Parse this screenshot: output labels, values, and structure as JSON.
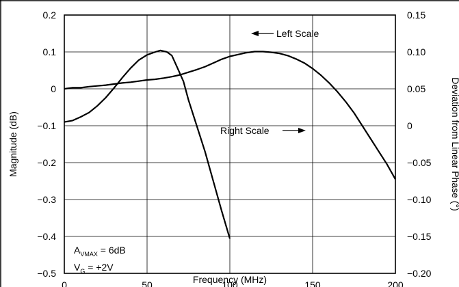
{
  "chart_data": {
    "type": "line",
    "xlabel": "Frequency (MHz)",
    "ylabel": "Magnitude (dB)",
    "y2label": "Deviation from Linear Phase (°)",
    "xlim": [
      0,
      200
    ],
    "ylim": [
      -0.5,
      0.2
    ],
    "y2lim": [
      -0.2,
      0.15
    ],
    "x_ticks": [
      0,
      50,
      100,
      150,
      200
    ],
    "x_tick_labels": [
      "0",
      "50",
      "100",
      "150",
      "200"
    ],
    "y_ticks": [
      0.2,
      0.1,
      0,
      -0.1,
      -0.2,
      -0.3,
      -0.4,
      -0.5
    ],
    "y_tick_labels": [
      "0.2",
      "0.1",
      "0",
      "−0.1",
      "−0.2",
      "−0.3",
      "−0.4",
      "−0.5"
    ],
    "y2_ticks": [
      0.15,
      0.1,
      0.05,
      0,
      -0.05,
      -0.1,
      -0.15,
      -0.2
    ],
    "y2_tick_labels": [
      "0.15",
      "0.10",
      "0.05",
      "0",
      "−0.05",
      "−0.10",
      "−0.15",
      "−0.20"
    ],
    "grid": true,
    "series": [
      {
        "axis": "left",
        "points": [
          [
            0,
            0.0
          ],
          [
            5,
            0.003
          ],
          [
            10,
            0.003
          ],
          [
            15,
            0.006
          ],
          [
            20,
            0.008
          ],
          [
            25,
            0.01
          ],
          [
            30,
            0.013
          ],
          [
            35,
            0.016
          ],
          [
            40,
            0.018
          ],
          [
            45,
            0.021
          ],
          [
            50,
            0.024
          ],
          [
            55,
            0.026
          ],
          [
            60,
            0.029
          ],
          [
            65,
            0.033
          ],
          [
            70,
            0.038
          ],
          [
            75,
            0.045
          ],
          [
            80,
            0.052
          ],
          [
            85,
            0.06
          ],
          [
            90,
            0.07
          ],
          [
            95,
            0.08
          ],
          [
            100,
            0.088
          ],
          [
            105,
            0.093
          ],
          [
            110,
            0.098
          ],
          [
            115,
            0.101
          ],
          [
            120,
            0.101
          ],
          [
            125,
            0.099
          ],
          [
            130,
            0.096
          ],
          [
            135,
            0.09
          ],
          [
            140,
            0.081
          ],
          [
            145,
            0.07
          ],
          [
            150,
            0.055
          ],
          [
            155,
            0.037
          ],
          [
            160,
            0.016
          ],
          [
            165,
            -0.008
          ],
          [
            170,
            -0.035
          ],
          [
            175,
            -0.065
          ],
          [
            180,
            -0.1
          ],
          [
            185,
            -0.135
          ],
          [
            190,
            -0.17
          ],
          [
            195,
            -0.205
          ],
          [
            200,
            -0.245
          ]
        ]
      },
      {
        "axis": "right",
        "points": [
          [
            0,
            0.005
          ],
          [
            5,
            0.007
          ],
          [
            10,
            0.012
          ],
          [
            15,
            0.018
          ],
          [
            20,
            0.027
          ],
          [
            25,
            0.038
          ],
          [
            30,
            0.051
          ],
          [
            35,
            0.065
          ],
          [
            40,
            0.078
          ],
          [
            45,
            0.089
          ],
          [
            50,
            0.096
          ],
          [
            55,
            0.1
          ],
          [
            58,
            0.102
          ],
          [
            62,
            0.1
          ],
          [
            65,
            0.095
          ],
          [
            68,
            0.08
          ],
          [
            72,
            0.06
          ],
          [
            75,
            0.035
          ],
          [
            80,
            0.0
          ],
          [
            85,
            -0.035
          ],
          [
            90,
            -0.075
          ],
          [
            95,
            -0.115
          ],
          [
            100,
            -0.153
          ]
        ]
      }
    ],
    "annotations": {
      "left_scale": "Left Scale",
      "right_scale": "Right Scale",
      "avmax_prefix": "A",
      "avmax_sub": "VMAX",
      "avmax_value": " = 6dB",
      "vg_prefix": "V",
      "vg_sub": "G",
      "vg_value": " = +2V"
    }
  }
}
